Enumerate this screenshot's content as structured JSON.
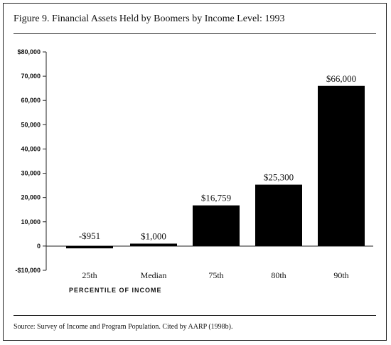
{
  "header": {
    "title": "Figure 9. Financial Assets Held by Boomers by Income Level: 1993"
  },
  "footer": {
    "source": "Source: Survey of Income and Program Population. Cited by AARP (1998b)."
  },
  "chart_data": {
    "type": "bar",
    "title": "Figure 9. Financial Assets Held by Boomers by Income Level: 1993",
    "xlabel": "PERCENTILE OF INCOME",
    "ylabel": "",
    "categories": [
      "25th",
      "Median",
      "75th",
      "80th",
      "90th"
    ],
    "values": [
      -951,
      1000,
      16759,
      25300,
      66000
    ],
    "data_labels": [
      "-$951",
      "$1,000",
      "$16,759",
      "$25,300",
      "$66,000"
    ],
    "ylim": [
      -10000,
      80000
    ],
    "yticks": [
      -10000,
      0,
      10000,
      20000,
      30000,
      40000,
      50000,
      60000,
      70000,
      80000
    ],
    "ytick_labels": [
      "-$10,000",
      "0",
      "10,000",
      "20,000",
      "30,000",
      "40,000",
      "50,000",
      "60,000",
      "70,000",
      "$80,000"
    ],
    "grid": false,
    "bar_color": "#000000"
  }
}
